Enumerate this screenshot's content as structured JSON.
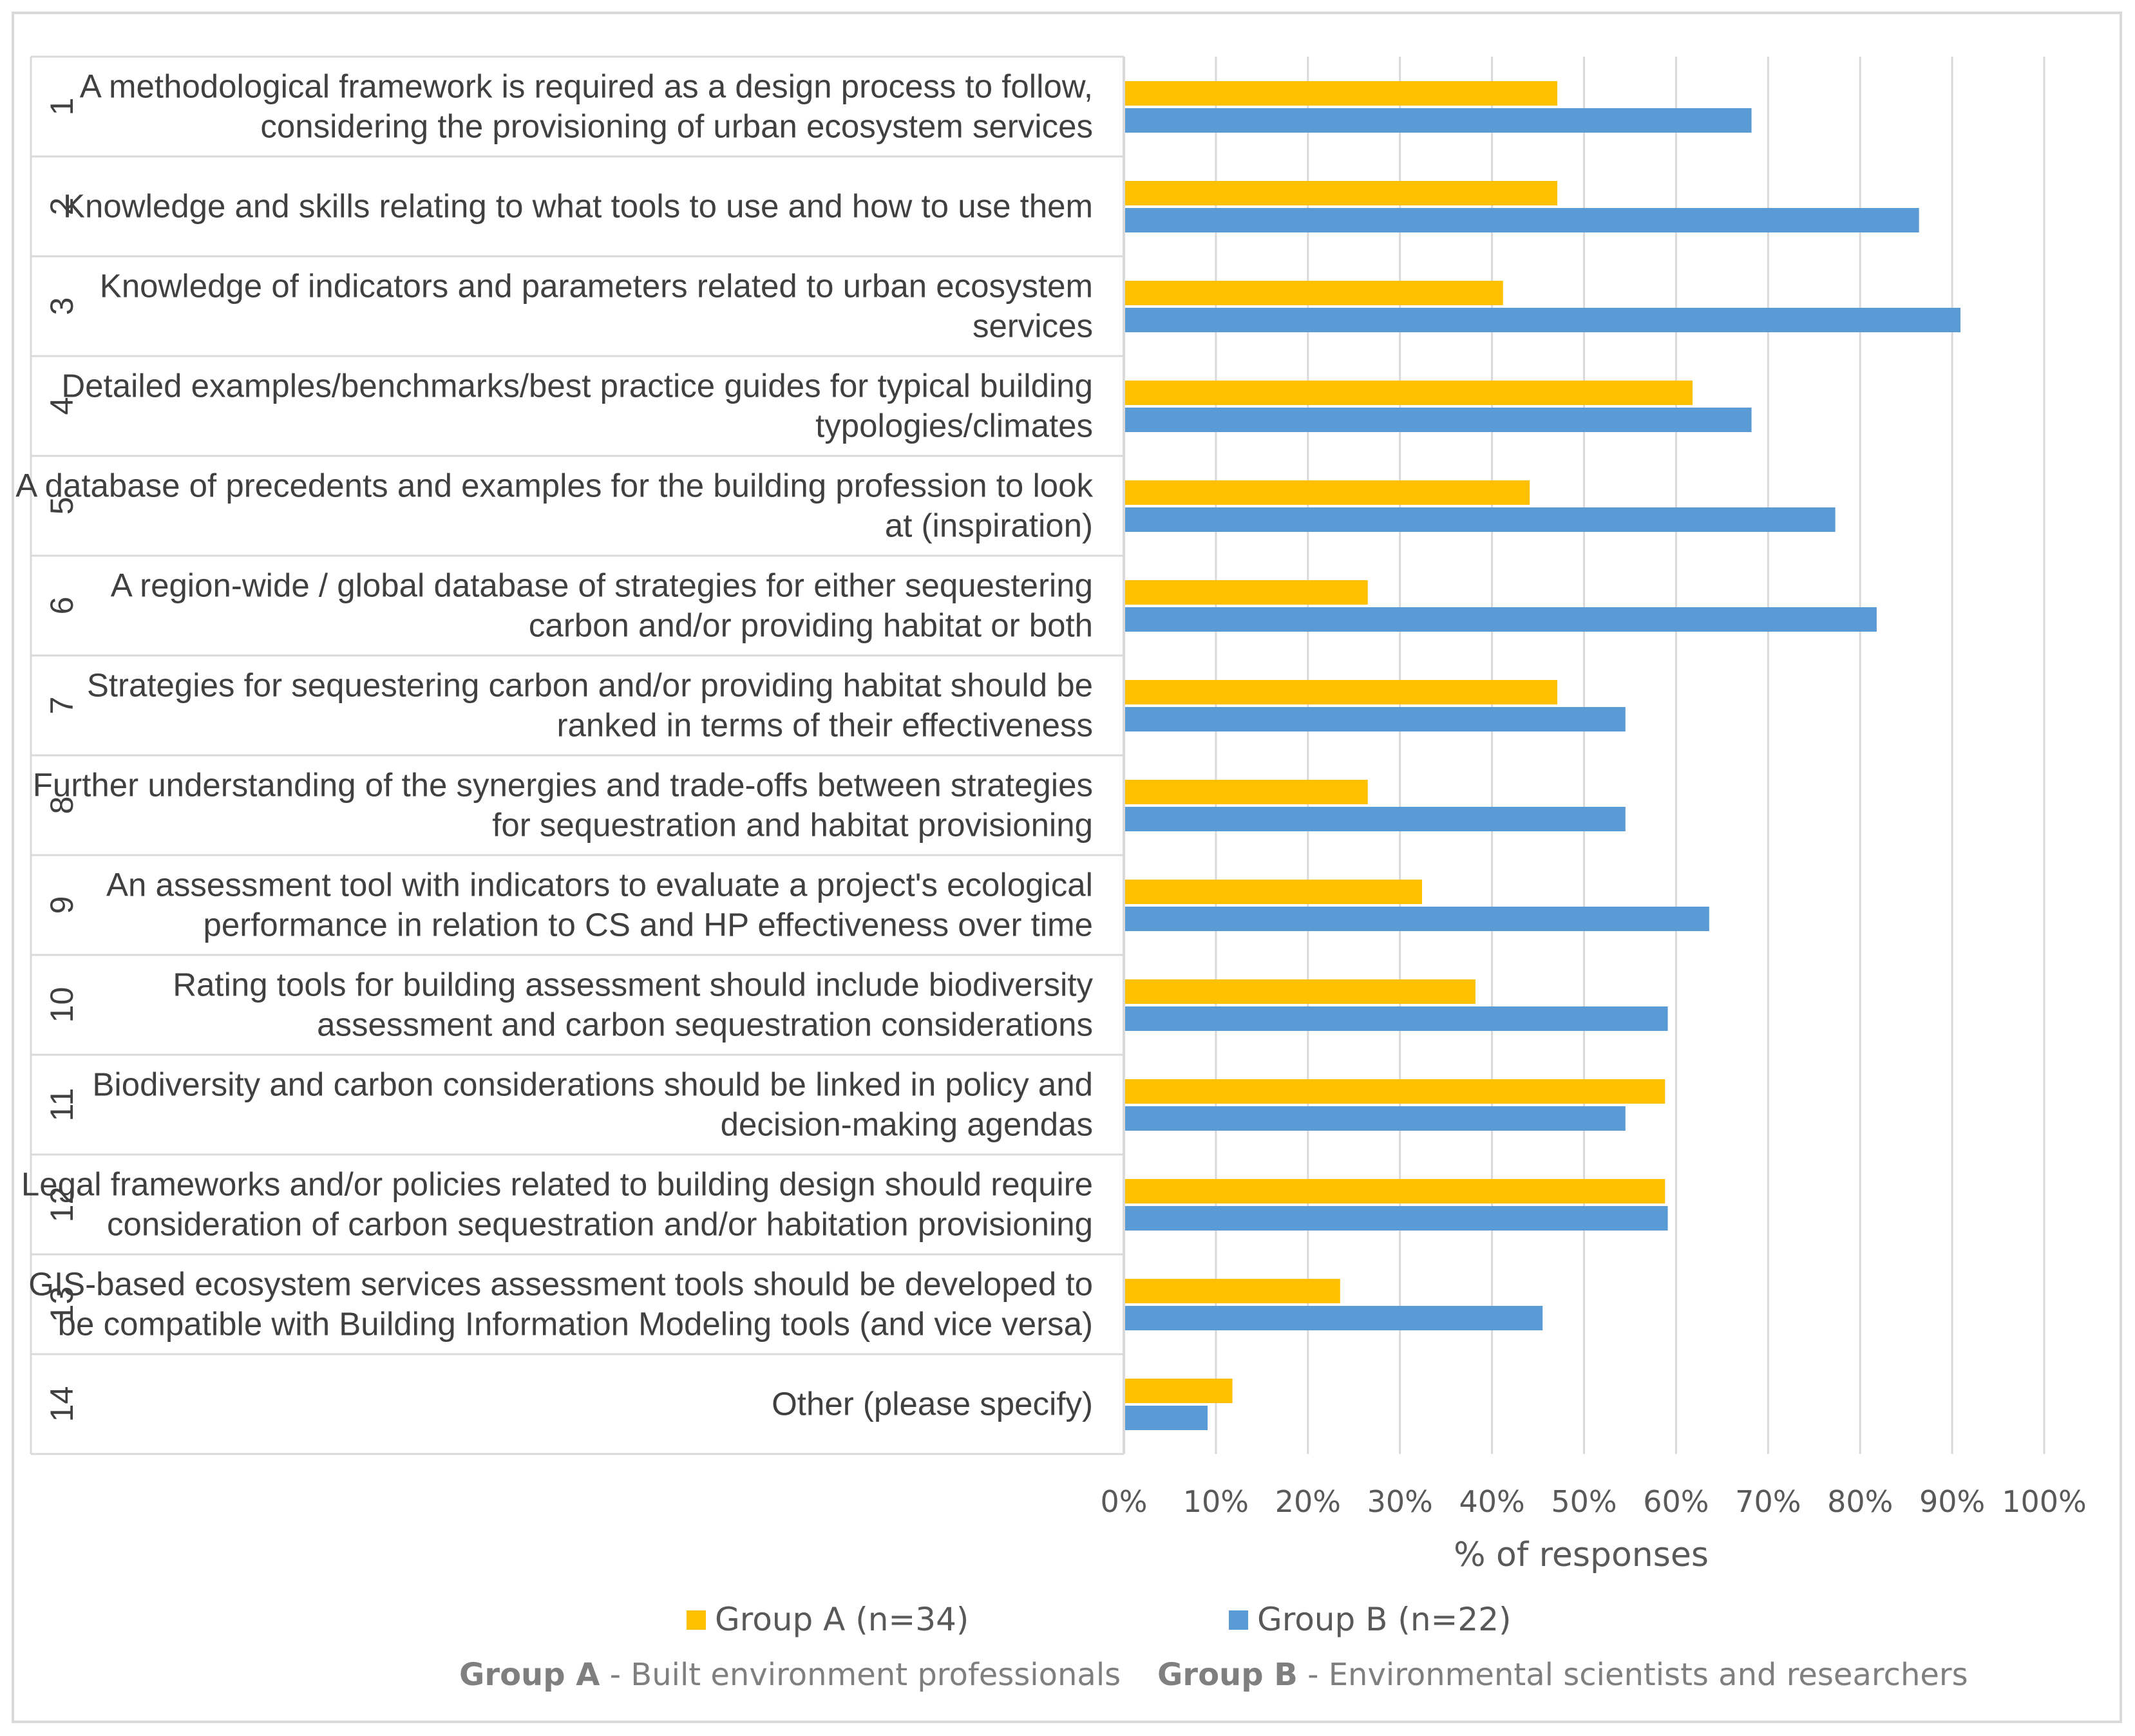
{
  "chart_data": {
    "type": "bar",
    "orientation": "horizontal",
    "xlabel": "% of responses",
    "xlim": [
      0,
      100
    ],
    "x_ticks": [
      "0%",
      "10%",
      "20%",
      "30%",
      "40%",
      "50%",
      "60%",
      "70%",
      "80%",
      "90%",
      "100%"
    ],
    "grid": true,
    "legend_position": "bottom",
    "categories": [
      {
        "num": "1",
        "lines": [
          "A methodological framework is required as a design process to follow,",
          "considering the provisioning of urban ecosystem services"
        ]
      },
      {
        "num": "2",
        "lines": [
          "Knowledge and skills relating to what tools to use and how to use them"
        ]
      },
      {
        "num": "3",
        "lines": [
          "Knowledge of indicators and parameters related to urban ecosystem",
          "services"
        ]
      },
      {
        "num": "4",
        "lines": [
          "Detailed examples/benchmarks/best practice guides for typical building",
          "typologies/climates"
        ]
      },
      {
        "num": "5",
        "lines": [
          "A database of precedents and examples for the building profession to look",
          "at (inspiration)"
        ]
      },
      {
        "num": "6",
        "lines": [
          "A region-wide / global database of strategies for either sequestering",
          "carbon and/or providing habitat or both"
        ]
      },
      {
        "num": "7",
        "lines": [
          "Strategies for sequestering carbon and/or providing habitat should be",
          "ranked in terms of their effectiveness"
        ]
      },
      {
        "num": "8",
        "lines": [
          "Further understanding of the synergies and trade-offs between strategies",
          "for sequestration and habitat provisioning"
        ]
      },
      {
        "num": "9",
        "lines": [
          "An assessment tool with indicators to evaluate a project's ecological",
          "performance in relation to CS and HP effectiveness over time"
        ]
      },
      {
        "num": "10",
        "lines": [
          "Rating tools for building assessment should include biodiversity",
          "assessment and carbon sequestration considerations"
        ]
      },
      {
        "num": "11",
        "lines": [
          "Biodiversity and carbon considerations should be linked in policy and",
          "decision-making agendas"
        ]
      },
      {
        "num": "12",
        "lines": [
          "Legal frameworks and/or policies related to building design should require",
          "consideration of carbon sequestration and/or habitation provisioning"
        ]
      },
      {
        "num": "13",
        "lines": [
          "GIS-based ecosystem services assessment tools should be developed to",
          "be compatible with Building Information Modeling tools (and vice versa)"
        ]
      },
      {
        "num": "14",
        "lines": [
          "Other (please specify)"
        ]
      }
    ],
    "series": [
      {
        "name": "Group A (n=34)",
        "color": "#ffc000",
        "values": [
          47.1,
          47.1,
          41.2,
          61.8,
          44.1,
          26.5,
          47.1,
          26.5,
          32.4,
          38.2,
          58.8,
          58.8,
          23.5,
          11.8
        ]
      },
      {
        "name": "Group B (n=22)",
        "color": "#5b9bd5",
        "values": [
          68.2,
          86.4,
          90.9,
          68.2,
          77.3,
          81.8,
          54.5,
          54.5,
          63.6,
          59.1,
          54.5,
          59.1,
          45.5,
          9.1
        ]
      }
    ],
    "footnotes": [
      {
        "bold": "Group A",
        "text": " - Built environment professionals"
      },
      {
        "bold": "Group B",
        "text": " - Environmental scientists and researchers"
      }
    ]
  }
}
